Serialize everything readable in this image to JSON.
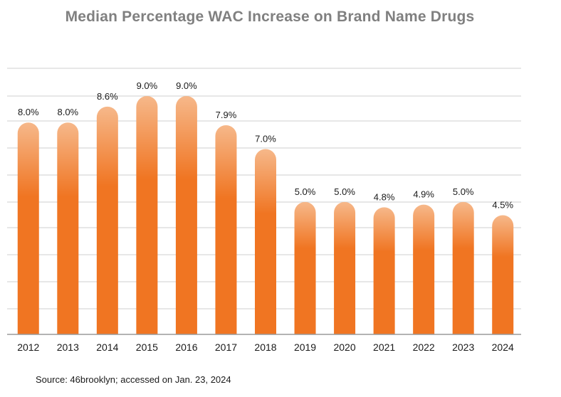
{
  "chart_data": {
    "type": "bar",
    "title": "Median Percentage WAC Increase on Brand Name Drugs",
    "categories": [
      "2012",
      "2013",
      "2014",
      "2015",
      "2016",
      "2017",
      "2018",
      "2019",
      "2020",
      "2021",
      "2022",
      "2023",
      "2024"
    ],
    "values": [
      8.0,
      8.0,
      8.6,
      9.0,
      9.0,
      7.9,
      7.0,
      5.0,
      5.0,
      4.8,
      4.9,
      5.0,
      4.5
    ],
    "data_labels": [
      "8.0%",
      "8.0%",
      "8.6%",
      "9.0%",
      "9.0%",
      "7.9%",
      "7.0%",
      "5.0%",
      "5.0%",
      "4.8%",
      "4.9%",
      "5.0%",
      "4.5%"
    ],
    "xlabel": "",
    "ylabel": "",
    "ylim": [
      0,
      10
    ],
    "grid": true,
    "bar_color": "#f07522",
    "bar_highlight_color": "#f6b88a",
    "grid_color": "#cfcfcf"
  },
  "source": "Source: 46brooklyn; accessed on Jan. 23, 2024"
}
